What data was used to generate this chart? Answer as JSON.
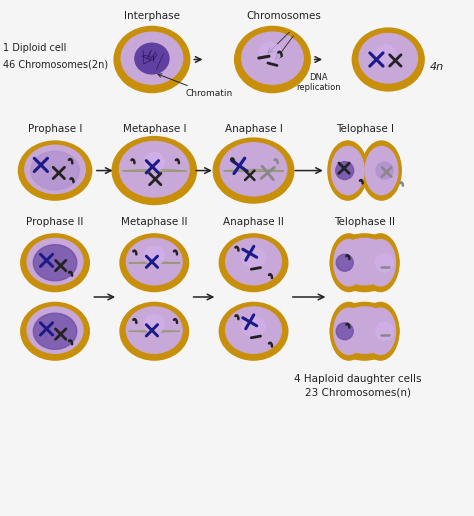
{
  "background_color": "#f5f5f5",
  "cell_outer_color": "#C8900A",
  "cell_inner_color": "#C8A8D8",
  "cell_inner_light": "#D8B8E8",
  "nucleus_dark_color": "#7050A8",
  "nucleus_light_color": "#B090D0",
  "nucleus_bright_color": "#D0B0E8",
  "arrow_color": "#222222",
  "text_color": "#222222",
  "chrom_blue": "#1a1a88",
  "chrom_dark": "#222222",
  "chrom_gray": "#888888",
  "chrom_med": "#444466",
  "row1_labels": [
    "Interphase",
    "Chromosomes",
    ""
  ],
  "row2_labels": [
    "Prophase I",
    "Metaphase I",
    "Anaphase I",
    "Telophase I"
  ],
  "row3_labels": [
    "Prophase II",
    "Metaphase II",
    "Anaphase II",
    "Telophase II"
  ],
  "left_text1": "1 Diploid cell",
  "left_text2": "46 Chromosomes(2n)",
  "chromatin_label": "Chromatin",
  "dna_label": "DNA\nreplication",
  "4n_label": "4n",
  "bottom_text1": "4 Haploid daughter cells",
  "bottom_text2": "23 Chromosomes(n)",
  "figsize": [
    4.74,
    5.16
  ],
  "dpi": 100
}
